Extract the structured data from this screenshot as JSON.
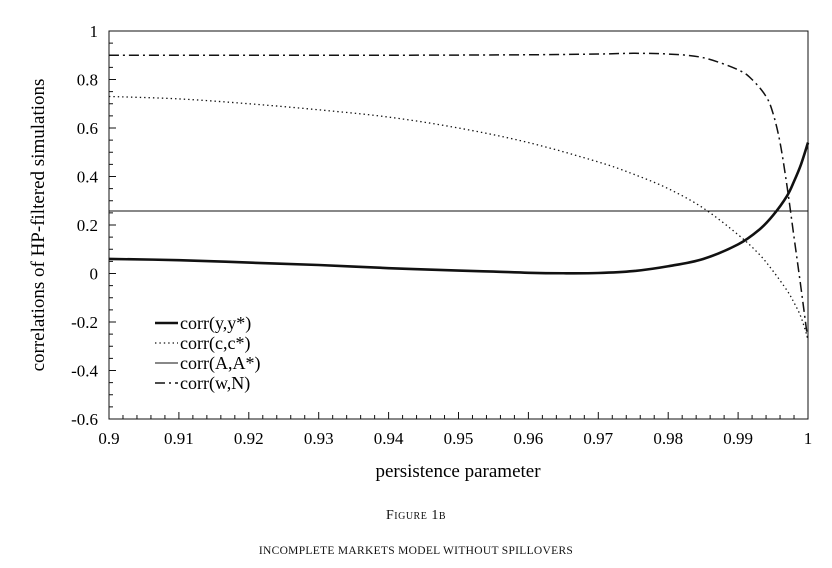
{
  "figure": {
    "number_label": "Figure 1b",
    "title": "Incomplete markets model without spillovers"
  },
  "chart_data": {
    "type": "line",
    "title": "",
    "xlabel": "persistence parameter",
    "ylabel": "correlations of HP-filtered simulations",
    "xlim": [
      0.9,
      1.0
    ],
    "ylim": [
      -0.6,
      1.0
    ],
    "xticks": [
      "0.9",
      "0.91",
      "0.92",
      "0.93",
      "0.94",
      "0.95",
      "0.96",
      "0.97",
      "0.98",
      "0.99",
      "1"
    ],
    "yticks": [
      "-0.6",
      "-0.4",
      "-0.2",
      "0",
      "0.2",
      "0.4",
      "0.6",
      "0.8",
      "1"
    ],
    "grid": false,
    "legend_position": "bottom-left",
    "series": [
      {
        "name": "corr(y,y*)",
        "style": "thick-solid",
        "x": [
          0.9,
          0.91,
          0.92,
          0.93,
          0.94,
          0.95,
          0.955,
          0.96,
          0.965,
          0.97,
          0.975,
          0.98,
          0.985,
          0.99,
          0.993,
          0.995,
          0.997,
          0.998,
          0.999,
          1.0
        ],
        "y": [
          0.06,
          0.055,
          0.045,
          0.035,
          0.022,
          0.012,
          0.008,
          0.003,
          0.001,
          0.002,
          0.01,
          0.03,
          0.06,
          0.12,
          0.18,
          0.24,
          0.32,
          0.38,
          0.45,
          0.54
        ]
      },
      {
        "name": "corr(c,c*)",
        "style": "dotted",
        "x": [
          0.9,
          0.91,
          0.92,
          0.93,
          0.94,
          0.95,
          0.96,
          0.97,
          0.975,
          0.98,
          0.985,
          0.99,
          0.993,
          0.995,
          0.997,
          0.998,
          0.999,
          1.0
        ],
        "y": [
          0.73,
          0.72,
          0.7,
          0.675,
          0.645,
          0.6,
          0.54,
          0.46,
          0.41,
          0.35,
          0.27,
          0.16,
          0.08,
          0.01,
          -0.07,
          -0.12,
          -0.18,
          -0.27
        ]
      },
      {
        "name": "corr(A,A*)",
        "style": "thin-solid",
        "x": [
          0.9,
          1.0
        ],
        "y": [
          0.258,
          0.258
        ]
      },
      {
        "name": "corr(w,N)",
        "style": "dash-dot",
        "x": [
          0.9,
          0.92,
          0.94,
          0.96,
          0.97,
          0.975,
          0.98,
          0.985,
          0.99,
          0.992,
          0.994,
          0.995,
          0.996,
          0.997,
          0.998,
          0.999,
          1.0
        ],
        "y": [
          0.9,
          0.9,
          0.9,
          0.902,
          0.905,
          0.908,
          0.905,
          0.89,
          0.84,
          0.8,
          0.73,
          0.66,
          0.54,
          0.36,
          0.15,
          -0.06,
          -0.28
        ]
      }
    ]
  }
}
